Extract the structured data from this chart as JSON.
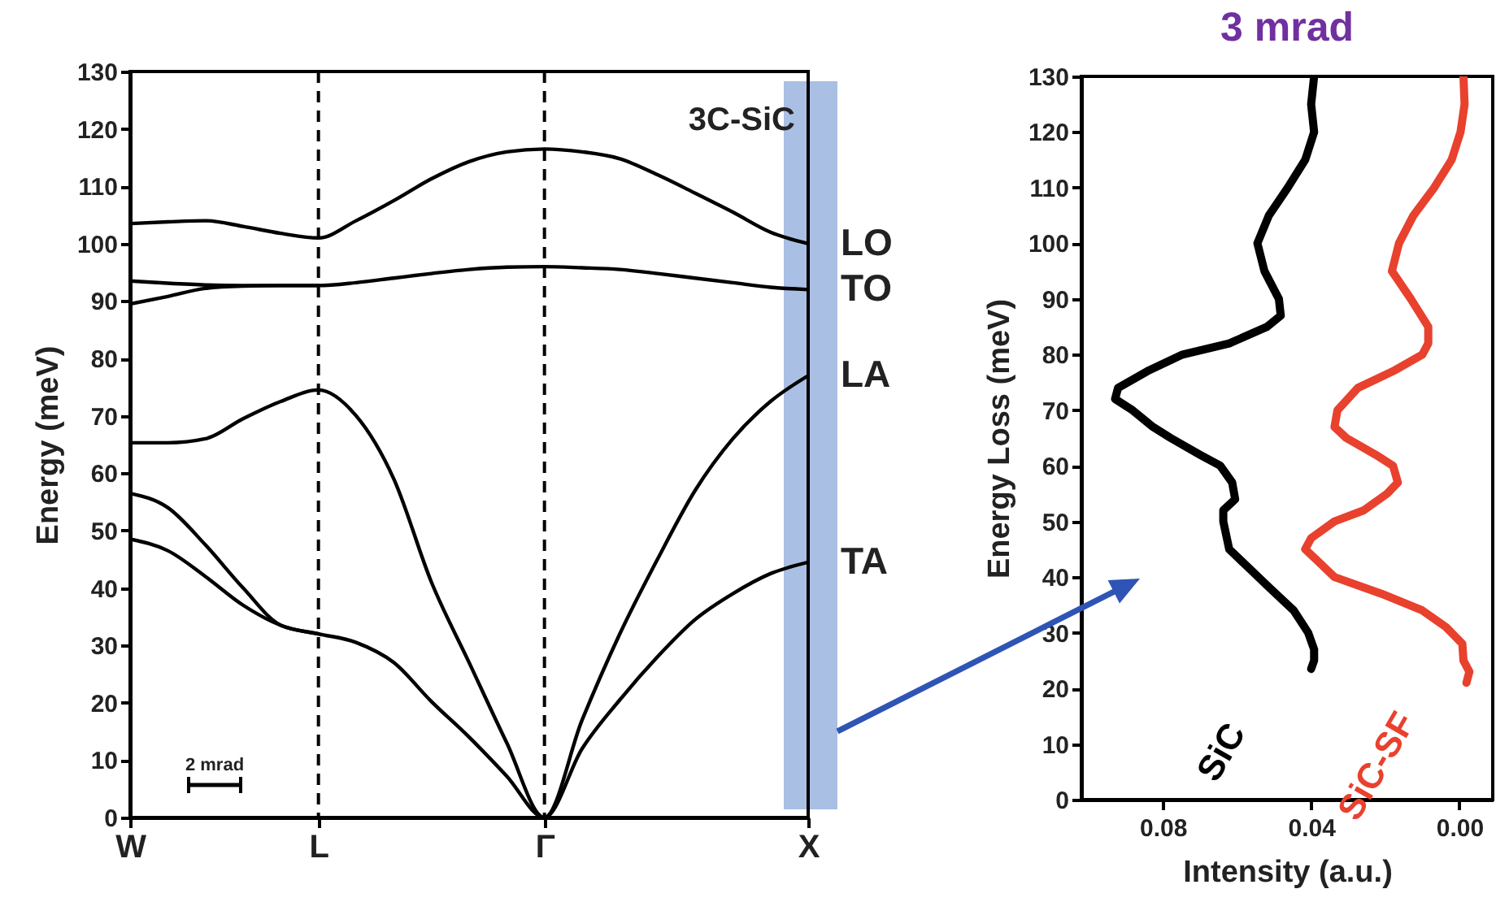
{
  "chart_data": [
    {
      "type": "line",
      "ylabel": "Energy (meV)",
      "categories": [
        "W",
        null,
        null,
        null,
        null,
        "L",
        null,
        null,
        null,
        null,
        null,
        "Γ",
        null,
        null,
        null,
        null,
        null,
        null,
        "X"
      ],
      "ylim": [
        0,
        130
      ],
      "yticks": [
        0,
        10,
        20,
        30,
        40,
        50,
        60,
        70,
        80,
        90,
        100,
        110,
        120,
        130
      ],
      "line_style": "solid",
      "ref_lines": [
        {
          "axis": "x",
          "value": "L",
          "line_style": "dashed",
          "color": "#000000"
        },
        {
          "axis": "x",
          "value": "Γ",
          "line_style": "dashed",
          "color": "#000000"
        }
      ],
      "annotations": [
        "3C-SiC",
        "2 mrad",
        {
          "text": "LO",
          "x": "X",
          "y": 100
        },
        {
          "text": "TO",
          "x": "X",
          "y": 92
        },
        {
          "text": "LA",
          "x": "X",
          "y": 77
        },
        {
          "text": "TA",
          "x": "X",
          "y": 44.5
        }
      ],
      "series": [
        {
          "color": "#000000",
          "values": [
            103.5,
            103.8,
            104,
            103,
            101.8,
            101,
            104,
            107.5,
            111.3,
            114.3,
            116,
            116.5,
            116,
            114.8,
            112,
            108.8,
            105.5,
            102,
            100
          ]
        },
        {
          "color": "#000000",
          "values": [
            93.5,
            93.1,
            92.8,
            92.7,
            92.7,
            92.7,
            93.2,
            94,
            94.8,
            95.5,
            95.9,
            96,
            95.8,
            95.5,
            94.8,
            94,
            93.2,
            92.4,
            92
          ]
        },
        {
          "color": "#000000",
          "values": [
            89.5,
            90.8,
            92.2,
            92.6,
            92.7,
            92.7,
            null,
            null,
            null,
            null,
            null,
            null,
            null,
            null,
            null,
            null,
            null,
            null,
            null
          ]
        },
        {
          "color": "#000000",
          "values": [
            65.3,
            65.3,
            66,
            69.5,
            72.5,
            74.5,
            70,
            59,
            41,
            27,
            13,
            0,
            17,
            32,
            45,
            57,
            66,
            72.5,
            77
          ]
        },
        {
          "color": "#000000",
          "values": [
            56.5,
            54,
            47.5,
            40,
            33.5,
            32,
            30.5,
            27,
            20.2,
            14,
            7.2,
            0,
            12,
            20.5,
            28,
            34.5,
            39,
            42.5,
            44.5
          ]
        },
        {
          "color": "#000000",
          "values": [
            48.5,
            46.5,
            42,
            37,
            33.5,
            32,
            null,
            null,
            null,
            null,
            null,
            null,
            null,
            null,
            null,
            null,
            null,
            null,
            null
          ]
        }
      ]
    },
    {
      "type": "line",
      "title": "3 mrad",
      "xlabel": "Intensity (a.u.)",
      "ylabel": "Energy Loss (meV)",
      "xlim": [
        0.102,
        -0.009
      ],
      "xticks": [
        0.08,
        0.04,
        {
          "value": 0,
          "label": "0.00"
        }
      ],
      "ylim": [
        0,
        130
      ],
      "yticks": [
        0,
        10,
        20,
        30,
        40,
        50,
        60,
        70,
        80,
        90,
        100,
        110,
        120,
        130
      ],
      "line_style": "solid",
      "series": [
        {
          "name": "SiC",
          "color": "#000000",
          "x": [
            0.0392,
            0.04,
            0.0392,
            0.0416,
            0.0463,
            0.0514,
            0.0545,
            0.0526,
            0.0487,
            0.0482,
            0.0519,
            0.0621,
            0.0747,
            0.0842,
            0.0921,
            0.0929,
            0.0882,
            0.0827,
            0.0779,
            0.07,
            0.0645,
            0.0613,
            0.0605,
            0.0637,
            0.0637,
            0.0621,
            0.0574,
            0.0511,
            0.0447,
            0.0408,
            0.0392,
            0.0392,
            0.04
          ],
          "values": [
            130,
            125,
            120,
            115,
            110,
            105,
            100,
            95,
            90,
            87,
            85,
            82,
            80,
            77,
            74,
            72,
            70,
            67,
            65,
            62,
            60,
            57,
            54,
            52,
            50,
            45,
            42,
            38,
            34,
            30,
            27,
            25,
            23.5
          ]
        },
        {
          "name": "SiC-SF",
          "color": "#e8412e",
          "x": [
            -0.0011,
            -0.0014,
            -0.0003,
            0.0021,
            0.0068,
            0.0124,
            0.0163,
            0.0182,
            0.0131,
            0.0084,
            0.0084,
            0.01,
            0.0179,
            0.0274,
            0.0329,
            0.0337,
            0.0305,
            0.0226,
            0.0179,
            0.0166,
            0.0195,
            0.0258,
            0.0337,
            0.04,
            0.0416,
            0.0384,
            0.0337,
            0.021,
            0.01,
            0.0036,
            -0.0008,
            -0.0011,
            -0.0027,
            -0.0019
          ],
          "values": [
            130,
            125,
            120,
            115,
            110,
            105,
            100,
            95,
            90,
            85,
            82,
            80,
            77,
            74,
            70,
            67,
            65,
            62,
            60,
            57,
            55,
            52,
            50,
            47,
            45,
            43,
            40,
            37,
            34,
            31,
            28,
            25,
            23,
            21
          ]
        }
      ]
    }
  ]
}
